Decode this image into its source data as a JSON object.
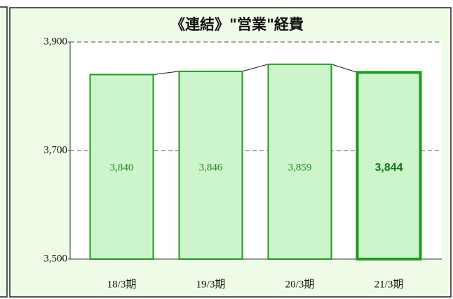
{
  "chart_data": {
    "type": "bar",
    "title": "《連結》\"営業\"経費",
    "categories": [
      "18/3期",
      "19/3期",
      "20/3期",
      "21/3期"
    ],
    "values": [
      3840,
      3846,
      3859,
      3844
    ],
    "value_labels": [
      "3,840",
      "3,846",
      "3,859",
      "3,844"
    ],
    "color": "#ccf5cc",
    "edge_color": "#1e9a1e",
    "ylim": [
      3500,
      3900
    ],
    "yticks": [
      {
        "value": 3500,
        "label": "3,500"
      },
      {
        "value": 3700,
        "label": "3,700"
      },
      {
        "value": 3900,
        "label": "3,900"
      }
    ],
    "grid": true,
    "highlight_index": 3
  }
}
